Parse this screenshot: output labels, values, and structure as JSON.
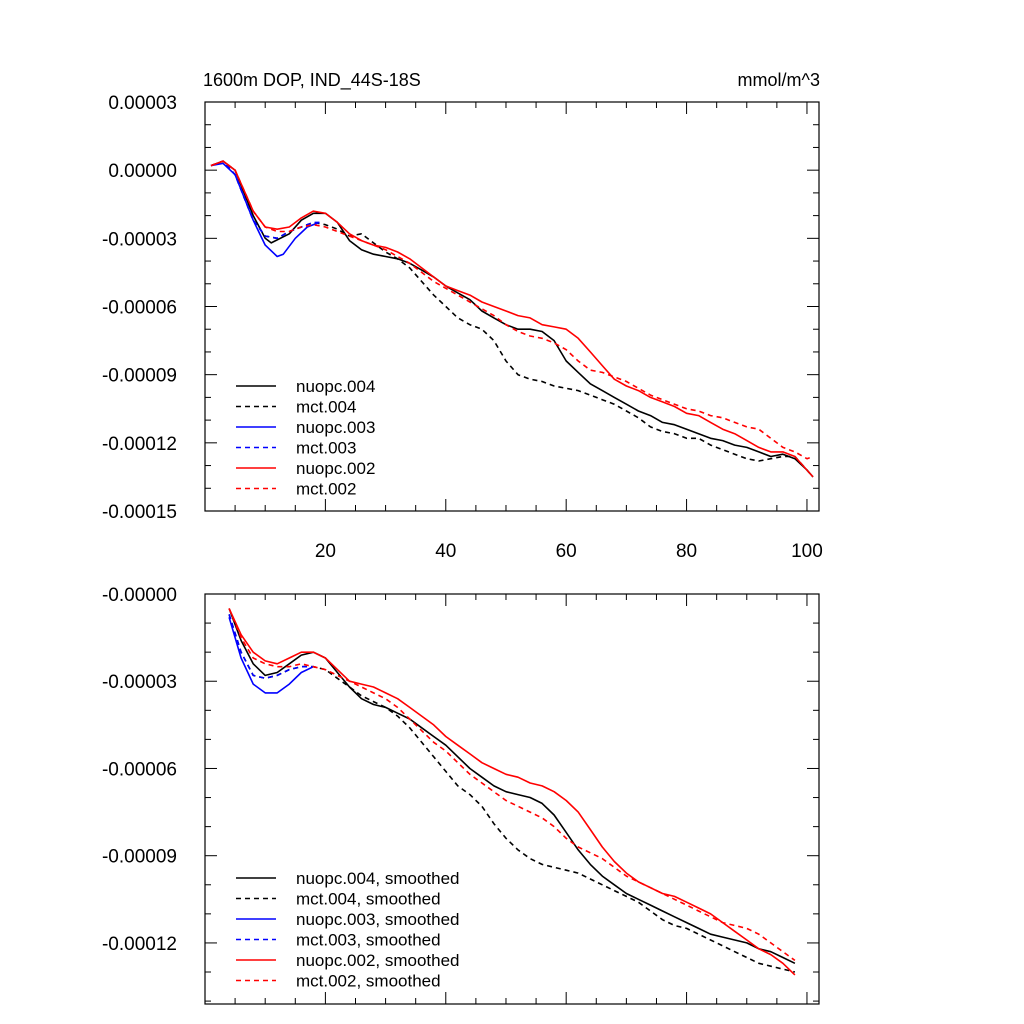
{
  "chart_data": [
    {
      "type": "line",
      "title_left": "1600m DOP, IND_44S-18S",
      "title_right": "mmol/m^3",
      "xlim": [
        0,
        102
      ],
      "ylim": [
        -0.00015,
        3e-05
      ],
      "xticks": [
        20,
        40,
        60,
        80,
        100
      ],
      "xtick_labels": [
        "20",
        "40",
        "60",
        "80",
        "100"
      ],
      "yticks": [
        3e-05,
        0,
        -3e-05,
        -6e-05,
        -9e-05,
        -0.00012,
        -0.00015
      ],
      "ytick_labels": [
        "0.00003",
        "0.00000",
        "-0.00003",
        "-0.00006",
        "-0.00009",
        "-0.00012",
        "-0.00015"
      ],
      "legend_position": "lower-left",
      "series": [
        {
          "name": "nuopc.004",
          "color": "#000000",
          "dash": "solid",
          "x": [
            1,
            3,
            5,
            8,
            10,
            11,
            14,
            16,
            18,
            20,
            22,
            24,
            26,
            28,
            30,
            32,
            34,
            36,
            38,
            40,
            42,
            44,
            46,
            48,
            50,
            52,
            54,
            56,
            58,
            60,
            62,
            64,
            66,
            68,
            70,
            72,
            74,
            76,
            78,
            80,
            82,
            84,
            86,
            88,
            90,
            92,
            94,
            96,
            98,
            100,
            101
          ],
          "y": [
            2e-06,
            4e-06,
            0,
            -2e-05,
            -3e-05,
            -3.2e-05,
            -2.8e-05,
            -2.2e-05,
            -1.9e-05,
            -1.9e-05,
            -2.3e-05,
            -3.1e-05,
            -3.5e-05,
            -3.7e-05,
            -3.8e-05,
            -3.9e-05,
            -4.1e-05,
            -4.4e-05,
            -4.7e-05,
            -5.1e-05,
            -5.4e-05,
            -5.7e-05,
            -6.2e-05,
            -6.5e-05,
            -6.8e-05,
            -7e-05,
            -7e-05,
            -7.1e-05,
            -7.5e-05,
            -8.4e-05,
            -8.9e-05,
            -9.4e-05,
            -9.7e-05,
            -0.0001,
            -0.000103,
            -0.000106,
            -0.000108,
            -0.000111,
            -0.000112,
            -0.000114,
            -0.000116,
            -0.000118,
            -0.000119,
            -0.000121,
            -0.000122,
            -0.000124,
            -0.000126,
            -0.000125,
            -0.000127,
            -0.000132,
            -0.000135
          ]
        },
        {
          "name": "mct.004",
          "color": "#000000",
          "dash": "dashed",
          "x": [
            1,
            3,
            5,
            8,
            10,
            12,
            14,
            16,
            18,
            20,
            22,
            24,
            26,
            28,
            30,
            32,
            34,
            36,
            38,
            40,
            42,
            44,
            46,
            48,
            50,
            52,
            54,
            56,
            58,
            60,
            62,
            64,
            66,
            68,
            70,
            72,
            74,
            76,
            78,
            80,
            82,
            84,
            86,
            88,
            90,
            92,
            94,
            96,
            98,
            100,
            101
          ],
          "y": [
            2e-06,
            4e-06,
            -2e-06,
            -2.2e-05,
            -2.9e-05,
            -3e-05,
            -2.7e-05,
            -2.5e-05,
            -2.3e-05,
            -2.4e-05,
            -2.6e-05,
            -2.9e-05,
            -2.8e-05,
            -3.2e-05,
            -3.6e-05,
            -3.9e-05,
            -4.3e-05,
            -4.9e-05,
            -5.5e-05,
            -6e-05,
            -6.5e-05,
            -6.8e-05,
            -7e-05,
            -7.5e-05,
            -8.4e-05,
            -9e-05,
            -9.2e-05,
            -9.3e-05,
            -9.5e-05,
            -9.6e-05,
            -9.7e-05,
            -9.9e-05,
            -0.000101,
            -0.000103,
            -0.000106,
            -0.000109,
            -0.000113,
            -0.000115,
            -0.000116,
            -0.000118,
            -0.000118,
            -0.000121,
            -0.000123,
            -0.000125,
            -0.000127,
            -0.000128,
            -0.000127,
            -0.000126,
            -0.000126,
            -0.000132,
            -0.000135
          ]
        },
        {
          "name": "nuopc.003",
          "color": "#0000ff",
          "dash": "solid",
          "x": [
            1,
            3,
            5,
            8,
            10,
            12,
            13,
            15,
            17,
            19
          ],
          "y": [
            2e-06,
            3e-06,
            -2e-06,
            -2.2e-05,
            -3.3e-05,
            -3.8e-05,
            -3.7e-05,
            -3e-05,
            -2.5e-05,
            -2.3e-05
          ]
        },
        {
          "name": "mct.003",
          "color": "#0000ff",
          "dash": "dashed",
          "x": [
            1,
            3,
            5,
            8,
            10,
            12,
            14,
            16,
            18,
            19
          ],
          "y": [
            2e-06,
            4e-06,
            -2e-06,
            -2.2e-05,
            -2.9e-05,
            -3e-05,
            -2.7e-05,
            -2.5e-05,
            -2.3e-05,
            -2.3e-05
          ]
        },
        {
          "name": "nuopc.002",
          "color": "#ff0000",
          "dash": "solid",
          "x": [
            1,
            3,
            5,
            8,
            10,
            12,
            14,
            16,
            18,
            20,
            22,
            24,
            26,
            28,
            30,
            32,
            34,
            36,
            38,
            40,
            42,
            44,
            46,
            48,
            50,
            52,
            54,
            56,
            58,
            60,
            62,
            64,
            66,
            68,
            70,
            72,
            74,
            76,
            78,
            80,
            82,
            84,
            86,
            88,
            90,
            92,
            94,
            96,
            98,
            100,
            101
          ],
          "y": [
            2e-06,
            4e-06,
            0,
            -1.8e-05,
            -2.5e-05,
            -2.6e-05,
            -2.5e-05,
            -2.1e-05,
            -1.8e-05,
            -1.9e-05,
            -2.3e-05,
            -2.8e-05,
            -3.1e-05,
            -3.3e-05,
            -3.4e-05,
            -3.6e-05,
            -3.9e-05,
            -4.3e-05,
            -4.7e-05,
            -5.1e-05,
            -5.3e-05,
            -5.5e-05,
            -5.8e-05,
            -6e-05,
            -6.2e-05,
            -6.4e-05,
            -6.5e-05,
            -6.8e-05,
            -6.9e-05,
            -7e-05,
            -7.4e-05,
            -8e-05,
            -8.6e-05,
            -9.2e-05,
            -9.5e-05,
            -9.7e-05,
            -0.0001,
            -0.000102,
            -0.000104,
            -0.000107,
            -0.000108,
            -0.000111,
            -0.000114,
            -0.000116,
            -0.000119,
            -0.000122,
            -0.000124,
            -0.000124,
            -0.000126,
            -0.000132,
            -0.000135
          ]
        },
        {
          "name": "mct.002",
          "color": "#ff0000",
          "dash": "dashed",
          "x": [
            1,
            3,
            5,
            8,
            10,
            12,
            14,
            16,
            18,
            20,
            22,
            24,
            26,
            28,
            30,
            32,
            34,
            36,
            38,
            40,
            42,
            44,
            46,
            48,
            50,
            52,
            54,
            56,
            58,
            60,
            62,
            64,
            66,
            68,
            70,
            72,
            74,
            76,
            78,
            80,
            82,
            84,
            86,
            88,
            90,
            92,
            94,
            96,
            98,
            100,
            101
          ],
          "y": [
            2e-06,
            4e-06,
            0,
            -1.8e-05,
            -2.5e-05,
            -2.7e-05,
            -2.7e-05,
            -2.5e-05,
            -2.4e-05,
            -2.5e-05,
            -2.7e-05,
            -2.9e-05,
            -3.1e-05,
            -3.3e-05,
            -3.5e-05,
            -3.8e-05,
            -4.1e-05,
            -4.5e-05,
            -4.9e-05,
            -5.2e-05,
            -5.5e-05,
            -5.8e-05,
            -6.1e-05,
            -6.4e-05,
            -6.8e-05,
            -7.1e-05,
            -7.3e-05,
            -7.4e-05,
            -7.6e-05,
            -7.9e-05,
            -8.4e-05,
            -8.8e-05,
            -8.9e-05,
            -9.1e-05,
            -9.3e-05,
            -9.6e-05,
            -9.9e-05,
            -0.000101,
            -0.000103,
            -0.000105,
            -0.000106,
            -0.000108,
            -0.000109,
            -0.000111,
            -0.000113,
            -0.000114,
            -0.000118,
            -0.000122,
            -0.000124,
            -0.000127,
            -0.000126
          ]
        }
      ]
    },
    {
      "type": "line",
      "xlim": [
        0,
        102
      ],
      "ylim": [
        -0.000141,
        0
      ],
      "xticks": [
        20,
        40,
        60,
        80,
        100
      ],
      "yticks": [
        0,
        -3e-05,
        -6e-05,
        -9e-05,
        -0.00012
      ],
      "ytick_labels": [
        "-0.00000",
        "-0.00003",
        "-0.00006",
        "-0.00009",
        "-0.00012"
      ],
      "legend_position": "lower-left",
      "series": [
        {
          "name": "nuopc.004, smoothed",
          "color": "#000000",
          "dash": "solid",
          "x": [
            4,
            6,
            8,
            10,
            12,
            14,
            16,
            18,
            20,
            22,
            24,
            26,
            28,
            30,
            32,
            34,
            36,
            38,
            40,
            42,
            44,
            46,
            48,
            50,
            52,
            54,
            56,
            58,
            60,
            62,
            64,
            66,
            68,
            70,
            72,
            74,
            76,
            78,
            80,
            82,
            84,
            86,
            88,
            90,
            92,
            94,
            96,
            98
          ],
          "y": [
            -5e-06,
            -1.6e-05,
            -2.4e-05,
            -2.8e-05,
            -2.7e-05,
            -2.4e-05,
            -2.1e-05,
            -2e-05,
            -2.2e-05,
            -2.7e-05,
            -3.2e-05,
            -3.6e-05,
            -3.8e-05,
            -3.9e-05,
            -4.1e-05,
            -4.3e-05,
            -4.6e-05,
            -4.9e-05,
            -5.2e-05,
            -5.6e-05,
            -6e-05,
            -6.3e-05,
            -6.6e-05,
            -6.8e-05,
            -6.9e-05,
            -7e-05,
            -7.2e-05,
            -7.6e-05,
            -8.2e-05,
            -8.8e-05,
            -9.3e-05,
            -9.7e-05,
            -0.0001,
            -0.000103,
            -0.000105,
            -0.000107,
            -0.000109,
            -0.000111,
            -0.000113,
            -0.000115,
            -0.000117,
            -0.000118,
            -0.000119,
            -0.00012,
            -0.000122,
            -0.000123,
            -0.000125,
            -0.000127
          ]
        },
        {
          "name": "mct.004, smoothed",
          "color": "#000000",
          "dash": "dashed",
          "x": [
            4,
            6,
            8,
            10,
            12,
            14,
            16,
            18,
            20,
            22,
            24,
            26,
            28,
            30,
            32,
            34,
            36,
            38,
            40,
            42,
            44,
            46,
            48,
            50,
            52,
            54,
            56,
            58,
            60,
            62,
            64,
            66,
            68,
            70,
            72,
            74,
            76,
            78,
            80,
            82,
            84,
            86,
            88,
            90,
            92,
            94,
            96,
            98
          ],
          "y": [
            -7e-06,
            -2e-05,
            -2.8e-05,
            -2.9e-05,
            -2.8e-05,
            -2.6e-05,
            -2.5e-05,
            -2.5e-05,
            -2.6e-05,
            -2.9e-05,
            -3.2e-05,
            -3.5e-05,
            -3.7e-05,
            -3.9e-05,
            -4.2e-05,
            -4.6e-05,
            -5.1e-05,
            -5.6e-05,
            -6.1e-05,
            -6.6e-05,
            -6.9e-05,
            -7.3e-05,
            -7.9e-05,
            -8.4e-05,
            -8.8e-05,
            -9.1e-05,
            -9.3e-05,
            -9.4e-05,
            -9.5e-05,
            -9.6e-05,
            -9.8e-05,
            -0.0001,
            -0.000102,
            -0.000104,
            -0.000106,
            -0.000109,
            -0.000112,
            -0.000114,
            -0.000115,
            -0.000117,
            -0.000119,
            -0.000121,
            -0.000123,
            -0.000125,
            -0.000127,
            -0.000128,
            -0.000129,
            -0.00013
          ]
        },
        {
          "name": "nuopc.003, smoothed",
          "color": "#0000ff",
          "dash": "solid",
          "x": [
            4,
            6,
            8,
            10,
            12,
            14,
            16,
            18
          ],
          "y": [
            -8e-06,
            -2.2e-05,
            -3.1e-05,
            -3.4e-05,
            -3.4e-05,
            -3.1e-05,
            -2.7e-05,
            -2.5e-05
          ]
        },
        {
          "name": "mct.003, smoothed",
          "color": "#0000ff",
          "dash": "dashed",
          "x": [
            4,
            6,
            8,
            10,
            12,
            14,
            16,
            18
          ],
          "y": [
            -7e-06,
            -2e-05,
            -2.8e-05,
            -2.9e-05,
            -2.8e-05,
            -2.6e-05,
            -2.5e-05,
            -2.5e-05
          ]
        },
        {
          "name": "nuopc.002, smoothed",
          "color": "#ff0000",
          "dash": "solid",
          "x": [
            4,
            6,
            8,
            10,
            12,
            14,
            16,
            18,
            20,
            22,
            24,
            26,
            28,
            30,
            32,
            34,
            36,
            38,
            40,
            42,
            44,
            46,
            48,
            50,
            52,
            54,
            56,
            58,
            60,
            62,
            64,
            66,
            68,
            70,
            72,
            74,
            76,
            78,
            80,
            82,
            84,
            86,
            88,
            90,
            92,
            94,
            96,
            98
          ],
          "y": [
            -5e-06,
            -1.4e-05,
            -2e-05,
            -2.3e-05,
            -2.4e-05,
            -2.2e-05,
            -2e-05,
            -2e-05,
            -2.2e-05,
            -2.6e-05,
            -3e-05,
            -3.1e-05,
            -3.2e-05,
            -3.4e-05,
            -3.6e-05,
            -3.9e-05,
            -4.2e-05,
            -4.5e-05,
            -4.9e-05,
            -5.2e-05,
            -5.5e-05,
            -5.8e-05,
            -6e-05,
            -6.2e-05,
            -6.3e-05,
            -6.5e-05,
            -6.6e-05,
            -6.8e-05,
            -7.1e-05,
            -7.5e-05,
            -8.1e-05,
            -8.7e-05,
            -9.2e-05,
            -9.6e-05,
            -9.9e-05,
            -0.000101,
            -0.000103,
            -0.000104,
            -0.000106,
            -0.000108,
            -0.00011,
            -0.000113,
            -0.000116,
            -0.000119,
            -0.000122,
            -0.000124,
            -0.000127,
            -0.000131
          ]
        },
        {
          "name": "mct.002, smoothed",
          "color": "#ff0000",
          "dash": "dashed",
          "x": [
            4,
            6,
            8,
            10,
            12,
            14,
            16,
            18,
            20,
            22,
            24,
            26,
            28,
            30,
            32,
            34,
            36,
            38,
            40,
            42,
            44,
            46,
            48,
            50,
            52,
            54,
            56,
            58,
            60,
            62,
            64,
            66,
            68,
            70,
            72,
            74,
            76,
            78,
            80,
            82,
            84,
            86,
            88,
            90,
            92,
            94,
            96,
            98
          ],
          "y": [
            -5e-06,
            -1.5e-05,
            -2.2e-05,
            -2.4e-05,
            -2.5e-05,
            -2.5e-05,
            -2.4e-05,
            -2.5e-05,
            -2.6e-05,
            -2.8e-05,
            -3e-05,
            -3.2e-05,
            -3.4e-05,
            -3.6e-05,
            -3.9e-05,
            -4.3e-05,
            -4.7e-05,
            -5.1e-05,
            -5.4e-05,
            -5.8e-05,
            -6.2e-05,
            -6.5e-05,
            -6.8e-05,
            -7.1e-05,
            -7.3e-05,
            -7.5e-05,
            -7.7e-05,
            -8e-05,
            -8.4e-05,
            -8.7e-05,
            -8.9e-05,
            -9.1e-05,
            -9.4e-05,
            -9.7e-05,
            -9.9e-05,
            -0.000101,
            -0.000103,
            -0.000105,
            -0.000107,
            -0.000109,
            -0.000111,
            -0.000113,
            -0.000114,
            -0.000115,
            -0.000117,
            -0.00012,
            -0.000123,
            -0.000126
          ]
        }
      ]
    }
  ]
}
